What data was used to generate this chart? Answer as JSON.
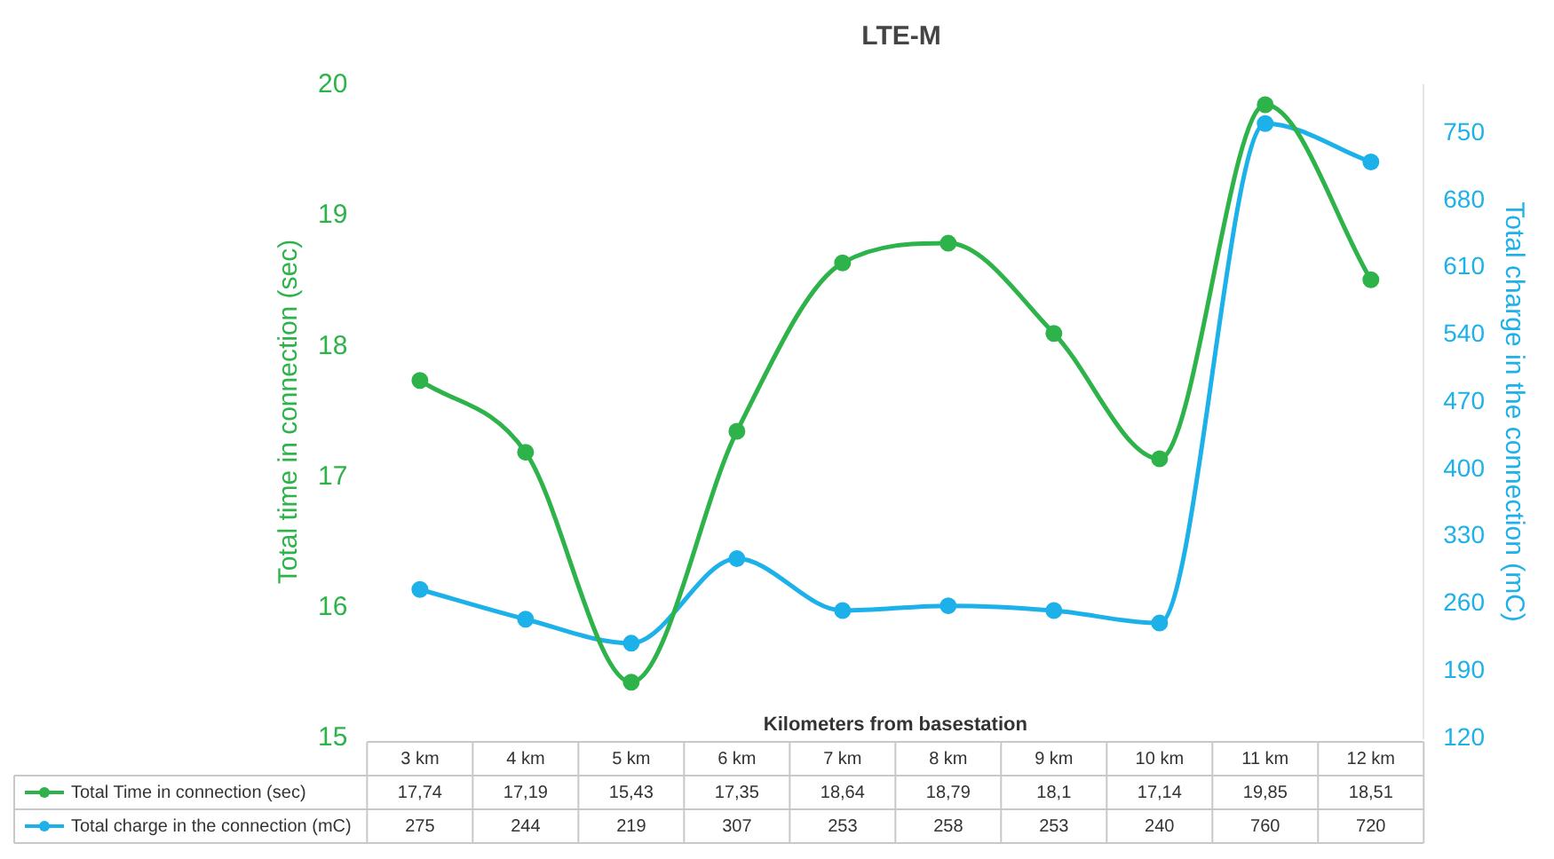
{
  "chart_data": {
    "type": "line",
    "title": "LTE-M",
    "xlabel": "Kilometers from basestation",
    "ylabel": "Total time in connection (sec)",
    "y2label": "Total charge in the connection (mC)",
    "categories": [
      "3 km",
      "4 km",
      "5 km",
      "6 km",
      "7 km",
      "8 km",
      "9 km",
      "10 km",
      "11 km",
      "12 km"
    ],
    "series": [
      {
        "name": "Total Time in connection (sec)",
        "color": "#2db34a",
        "values": [
          17.74,
          17.19,
          15.43,
          17.35,
          18.64,
          18.79,
          18.1,
          17.14,
          19.85,
          18.51
        ],
        "value_labels": [
          "17,74",
          "17,19",
          "15,43",
          "17,35",
          "18,64",
          "18,79",
          "18,1",
          "17,14",
          "19,85",
          "18,51"
        ]
      },
      {
        "name": "Total charge in the connection (mC)",
        "color": "#1db1ea",
        "axis": "y2",
        "values": [
          275,
          244,
          219,
          307,
          253,
          258,
          253,
          240,
          760,
          720
        ],
        "value_labels": [
          "275",
          "244",
          "219",
          "307",
          "253",
          "258",
          "253",
          "240",
          "760",
          "720"
        ]
      }
    ],
    "ylim": [
      15,
      20
    ],
    "yticks": [
      15,
      16,
      17,
      18,
      19,
      20
    ],
    "y2lim": [
      120,
      800
    ],
    "y2ticks": [
      120,
      190,
      260,
      330,
      400,
      470,
      540,
      610,
      680,
      750
    ],
    "marker": "circle",
    "line_style": "solid",
    "grid": false,
    "legend": "bottom"
  }
}
